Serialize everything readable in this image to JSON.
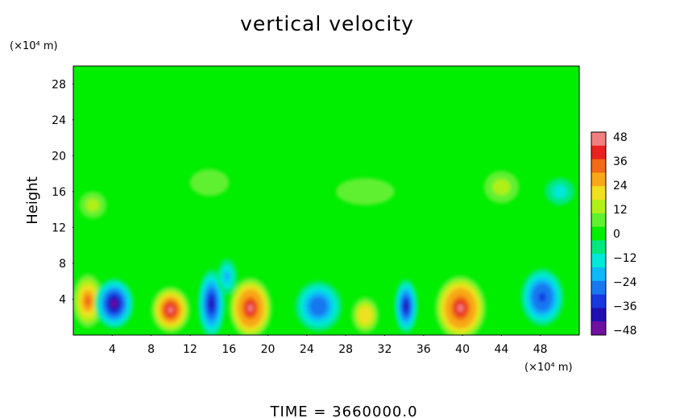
{
  "chart_data": {
    "type": "heatmap",
    "title": "vertical velocity",
    "ylabel": "Height",
    "xlabel": "",
    "x_unit": "(×10⁴ m)",
    "y_unit": "(×10⁴ m)",
    "footer": "TIME  =  3660000.0",
    "xlim": [
      0,
      52
    ],
    "ylim": [
      0,
      30
    ],
    "x_ticks": [
      "4",
      "8",
      "12",
      "16",
      "20",
      "24",
      "28",
      "32",
      "36",
      "40",
      "44",
      "48"
    ],
    "y_ticks": [
      "4",
      "8",
      "12",
      "16",
      "20",
      "24",
      "28"
    ],
    "colorbar": {
      "range": [
        -48,
        48
      ],
      "tick_labels": [
        "48",
        "36",
        "24",
        "12",
        "0",
        "−12",
        "−24",
        "−36",
        "−48"
      ],
      "colors": [
        "#f08080",
        "#e8221e",
        "#f06a18",
        "#f8a818",
        "#f0e020",
        "#b0f018",
        "#60f030",
        "#00ee00",
        "#00e880",
        "#00e8d8",
        "#10b8f8",
        "#1878f0",
        "#1838e0",
        "#2010b0",
        "#7010a0"
      ]
    },
    "background_value": 0,
    "features": [
      {
        "x": 1.5,
        "y": 3.8,
        "value": 30,
        "rx": 1.6,
        "ry": 3.0
      },
      {
        "x": 4.2,
        "y": 3.5,
        "value": -42,
        "rx": 2.0,
        "ry": 2.8
      },
      {
        "x": 10.0,
        "y": 2.8,
        "value": 42,
        "rx": 2.0,
        "ry": 2.6
      },
      {
        "x": 14.2,
        "y": 3.5,
        "value": -36,
        "rx": 1.4,
        "ry": 3.8
      },
      {
        "x": 18.2,
        "y": 3.0,
        "value": 45,
        "rx": 2.2,
        "ry": 3.4
      },
      {
        "x": 25.2,
        "y": 3.2,
        "value": -28,
        "rx": 2.4,
        "ry": 2.8
      },
      {
        "x": 30.0,
        "y": 2.2,
        "value": 22,
        "rx": 1.4,
        "ry": 2.0
      },
      {
        "x": 34.2,
        "y": 3.2,
        "value": -38,
        "rx": 1.2,
        "ry": 3.0
      },
      {
        "x": 39.8,
        "y": 3.0,
        "value": 45,
        "rx": 2.6,
        "ry": 3.6
      },
      {
        "x": 48.2,
        "y": 4.2,
        "value": -34,
        "rx": 2.2,
        "ry": 3.2
      },
      {
        "x": 15.8,
        "y": 6.5,
        "value": -18,
        "rx": 1.0,
        "ry": 2.0
      },
      {
        "x": 2.0,
        "y": 14.5,
        "value": 12,
        "rx": 1.4,
        "ry": 1.5
      },
      {
        "x": 14.0,
        "y": 17.0,
        "value": 8,
        "rx": 2.0,
        "ry": 1.5
      },
      {
        "x": 30.0,
        "y": 16.0,
        "value": 8,
        "rx": 3.0,
        "ry": 1.5
      },
      {
        "x": 44.0,
        "y": 16.5,
        "value": 12,
        "rx": 1.8,
        "ry": 1.8
      },
      {
        "x": 50.0,
        "y": 16.0,
        "value": -10,
        "rx": 1.5,
        "ry": 1.5
      }
    ]
  }
}
